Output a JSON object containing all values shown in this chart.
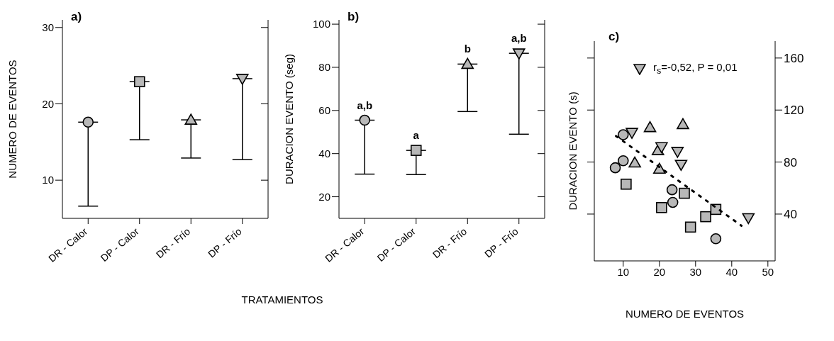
{
  "chart_data": [
    {
      "type": "scatter",
      "title": "a)",
      "xlabel": "TRATAMIENTOS",
      "ylabel": "NUMERO DE EVENTOS",
      "categories": [
        "DR - Calor",
        "DP - Calor",
        "DR - Frío",
        "DP - Frío"
      ],
      "ylim": [
        5,
        31
      ],
      "yticks": [
        10,
        20,
        30
      ],
      "series": [
        {
          "color": "#b8b8b8",
          "marker": "circle",
          "values": [
            17.6,
            null,
            null,
            null
          ],
          "errors": [
            [
              6.6,
              17.6
            ],
            null,
            null,
            null
          ]
        },
        {
          "color": "#b8b8b8",
          "marker": "square",
          "values": [
            null,
            22.9,
            null,
            null
          ],
          "errors": [
            null,
            [
              15.3,
              22.9
            ],
            null,
            null
          ]
        },
        {
          "color": "#b8b8b8",
          "marker": "triangle",
          "values": [
            null,
            null,
            17.9,
            null
          ],
          "errors": [
            null,
            null,
            [
              12.9,
              17.9
            ],
            null
          ]
        },
        {
          "color": "#b8b8b8",
          "marker": "triangle-down",
          "values": [
            null,
            null,
            null,
            23.3
          ],
          "errors": [
            null,
            null,
            null,
            [
              12.7,
              23.3
            ]
          ]
        }
      ]
    },
    {
      "type": "scatter",
      "title": "b)",
      "ylabel": "DURACION EVENTO (seg)",
      "categories": [
        "DR - Calor",
        "DP - Calor",
        "DR - Frío",
        "DP - Frío"
      ],
      "ylim": [
        10,
        102
      ],
      "yticks": [
        20,
        40,
        60,
        80,
        100
      ],
      "series": [
        {
          "color": "#b8b8b8",
          "marker": "circle",
          "values": [
            55.5,
            null,
            null,
            null
          ],
          "errors": [
            [
              30.5,
              55.5
            ],
            null,
            null,
            null
          ]
        },
        {
          "color": "#b8b8b8",
          "marker": "square",
          "values": [
            null,
            41.5,
            null,
            null
          ],
          "errors": [
            null,
            [
              30.3,
              41.5
            ],
            null,
            null
          ]
        },
        {
          "color": "#b8b8b8",
          "marker": "triangle",
          "values": [
            null,
            null,
            81.5,
            null
          ],
          "errors": [
            null,
            null,
            [
              59.5,
              81.5
            ],
            null
          ]
        },
        {
          "color": "#b8b8b8",
          "marker": "triangle-down",
          "values": [
            null,
            null,
            null,
            86.5
          ],
          "errors": [
            null,
            null,
            null,
            [
              49,
              86.5
            ]
          ]
        }
      ],
      "annotations": [
        {
          "text": "a,b",
          "x": "DR - Calor",
          "y": 55.5
        },
        {
          "text": "a",
          "x": "DP - Calor",
          "y": 41.5
        },
        {
          "text": "b",
          "x": "DR - Frío",
          "y": 81.5
        },
        {
          "text": "a,b",
          "x": "DP - Frío",
          "y": 86.5
        }
      ]
    },
    {
      "type": "scatter",
      "title": "c)",
      "xlabel": "NUMERO DE EVENTOS",
      "ylabel": "DURACION EVENTO (s)",
      "xlim": [
        2,
        52
      ],
      "xticks": [
        10,
        20,
        30,
        40,
        50
      ],
      "ylim": [
        4,
        173
      ],
      "yticks": [
        40,
        80,
        120,
        160
      ],
      "legend": "top",
      "series": [
        {
          "color": "#b8b8b8",
          "marker": "circle",
          "x": [
            10,
            7.8,
            10,
            23.5,
            23.7,
            35.6
          ],
          "values": [
            101,
            75.6,
            81,
            58.7,
            49,
            21
          ]
        },
        {
          "color": "#b8b8b8",
          "marker": "square",
          "x": [
            10.8,
            20.6,
            26.9,
            28.6,
            32.8,
            35.6
          ],
          "values": [
            63,
            45,
            56,
            30,
            38,
            43.6
          ]
        },
        {
          "color": "#b8b8b8",
          "marker": "triangle",
          "x": [
            17.4,
            26.5,
            13.2,
            19.6,
            20
          ],
          "values": [
            106.7,
            109,
            79.5,
            89,
            74.7
          ]
        },
        {
          "name": "r$_{s}$=-0,52, P = 0,01",
          "color": "#b8b8b8",
          "marker": "triangle-down",
          "x": [
            12.4,
            20.6,
            25,
            26,
            44.6
          ],
          "values": [
            102.6,
            91.6,
            88,
            78,
            37
          ]
        },
        {
          "type": "line",
          "color": "#000000",
          "line_style": "dotted",
          "x": [
            8,
            42.7
          ],
          "values": [
            100,
            31
          ]
        }
      ]
    }
  ]
}
